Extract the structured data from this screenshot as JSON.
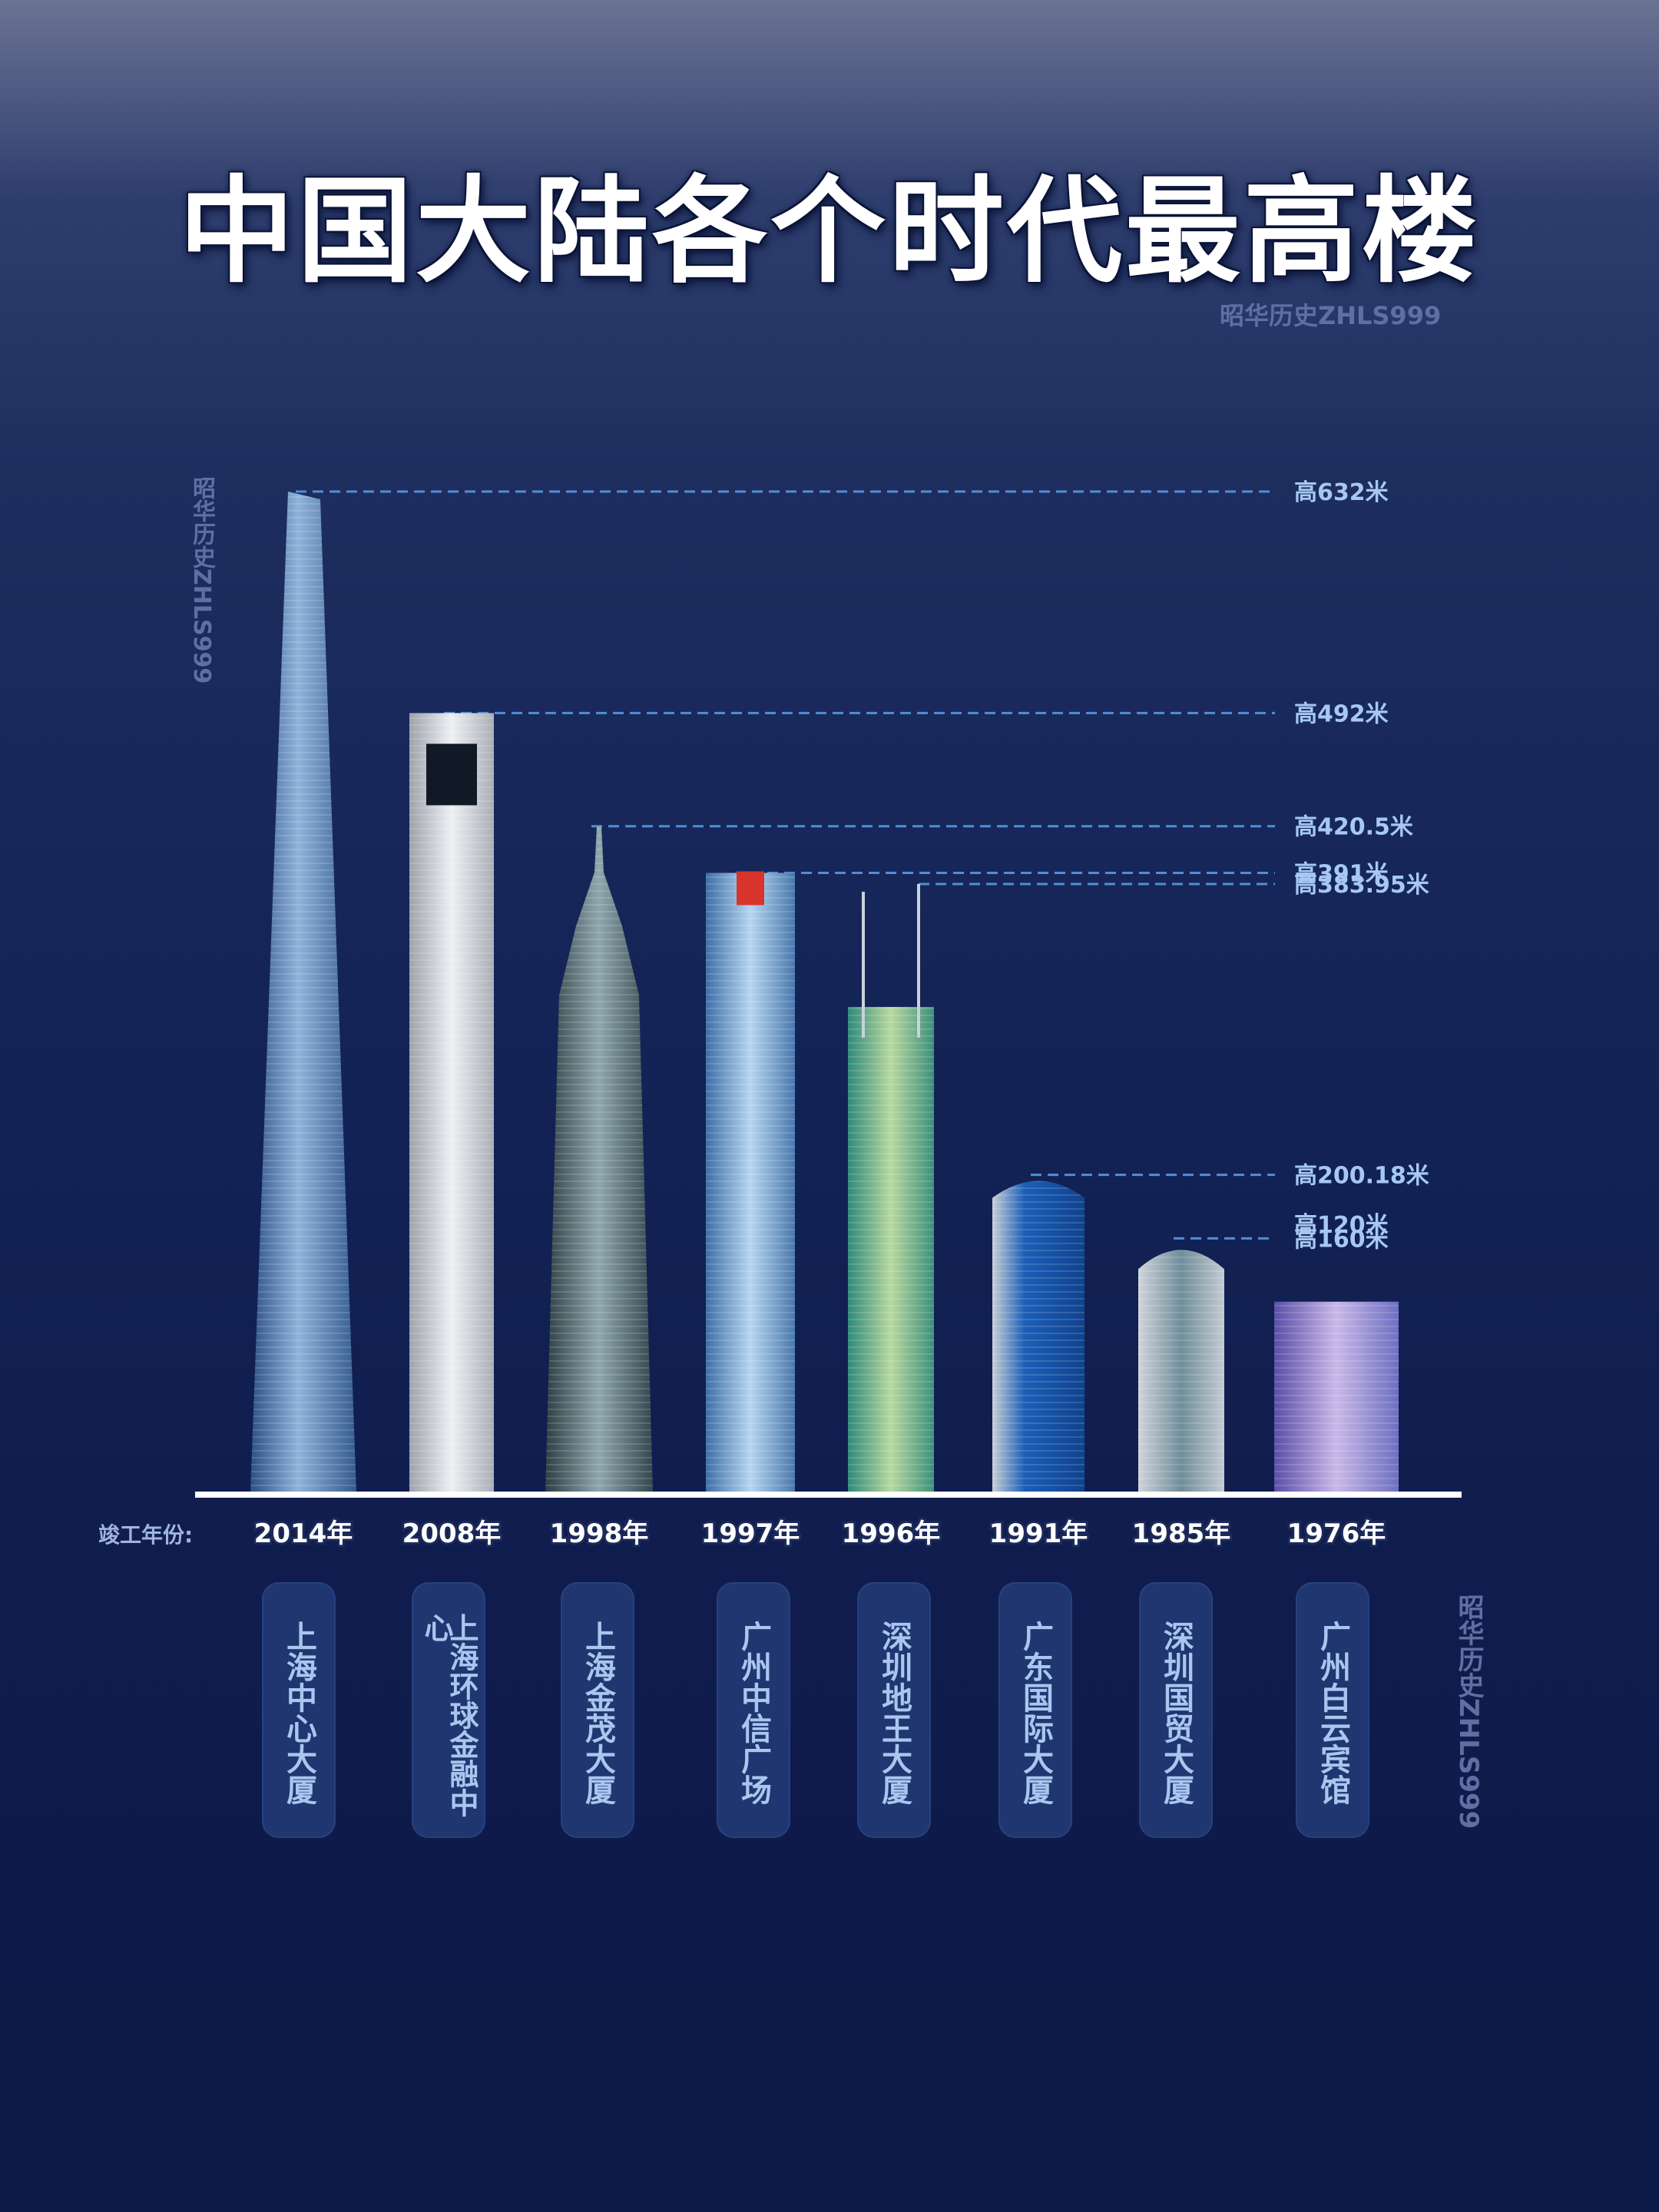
{
  "title": "中国大陆各个时代最高楼",
  "watermark": "昭华历史ZHLS999",
  "colors": {
    "accent": "#a6c8f2",
    "baseline": "#ffffff",
    "pill": "#1f3670"
  },
  "chart_data": {
    "type": "bar",
    "title": "中国大陆各个时代最高楼",
    "x_caption": "竣工年份:",
    "categories": [
      "上海中心大厦",
      "上海环球金融中心",
      "上海金茂大厦",
      "广州中信广场",
      "深圳地王大厦",
      "广东国际大厦",
      "深圳国贸大厦",
      "广州白云宾馆"
    ],
    "years": [
      "2014年",
      "2008年",
      "1998年",
      "1997年",
      "1996年",
      "1991年",
      "1985年",
      "1976年"
    ],
    "values": [
      632,
      492,
      420.5,
      391,
      383.95,
      200.18,
      160,
      120
    ],
    "value_labels": [
      "高632米",
      "高492米",
      "高420.5米",
      "高391米",
      "高383.95米",
      "高200.18米",
      "高160米",
      "高120米"
    ],
    "unit": "米",
    "ylim": [
      0,
      632
    ],
    "grid": false,
    "legend": "none"
  }
}
